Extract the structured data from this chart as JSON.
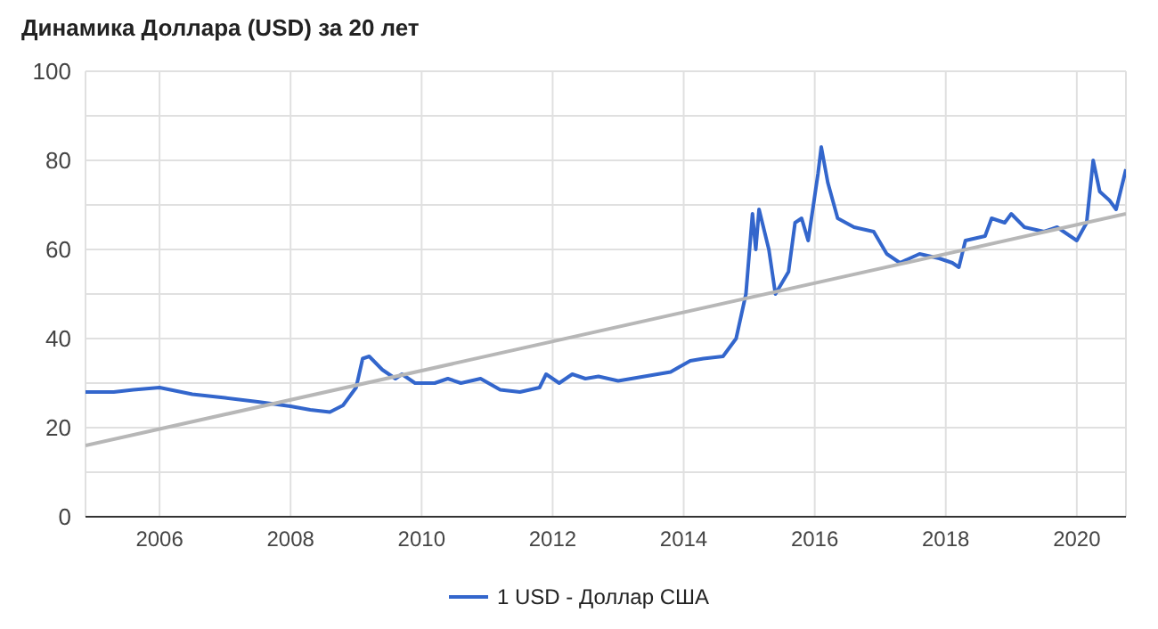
{
  "chart_data": {
    "type": "line",
    "title": "Динамика Доллара (USD) за 20 лет",
    "xlim": [
      2004.87,
      2020.75
    ],
    "xticks": [
      2006,
      2008,
      2010,
      2012,
      2014,
      2016,
      2018,
      2020
    ],
    "ylim": [
      0,
      100
    ],
    "yticks": [
      0,
      {
        "value": 10,
        "label": null
      },
      20,
      {
        "value": 30,
        "label": null
      },
      40,
      {
        "value": 50,
        "label": null
      },
      60,
      {
        "value": 70,
        "label": null
      },
      80,
      {
        "value": 90,
        "label": null
      },
      100
    ],
    "grid": true,
    "legend": "bottom",
    "marker": "none",
    "line_style": "solid",
    "series": [
      {
        "name": "1 USD - Доллар США",
        "color": "#3366cc",
        "x": [
          2004.87,
          2005.3,
          2005.6,
          2006.0,
          2006.5,
          2007.0,
          2007.5,
          2008.0,
          2008.3,
          2008.6,
          2008.8,
          2009.0,
          2009.1,
          2009.2,
          2009.4,
          2009.6,
          2009.7,
          2009.9,
          2010.2,
          2010.4,
          2010.6,
          2010.9,
          2011.2,
          2011.5,
          2011.8,
          2011.9,
          2012.1,
          2012.3,
          2012.5,
          2012.7,
          2013.0,
          2013.4,
          2013.8,
          2014.1,
          2014.3,
          2014.6,
          2014.8,
          2014.95,
          2015.05,
          2015.1,
          2015.15,
          2015.3,
          2015.4,
          2015.6,
          2015.7,
          2015.8,
          2015.9,
          2016.05,
          2016.1,
          2016.2,
          2016.35,
          2016.6,
          2016.9,
          2017.1,
          2017.3,
          2017.6,
          2017.9,
          2018.1,
          2018.2,
          2018.3,
          2018.6,
          2018.7,
          2018.9,
          2019.0,
          2019.2,
          2019.5,
          2019.7,
          2019.9,
          2020.0,
          2020.15,
          2020.25,
          2020.35,
          2020.5,
          2020.6,
          2020.75
        ],
        "values": [
          28,
          28,
          28.5,
          29,
          27.5,
          26.7,
          25.8,
          24.8,
          24,
          23.5,
          25,
          29,
          35.5,
          36,
          33,
          31,
          32,
          30,
          30,
          31,
          30,
          31,
          28.5,
          28,
          29,
          32,
          30,
          32,
          31,
          31.5,
          30.5,
          31.5,
          32.5,
          35,
          35.5,
          36,
          40,
          50,
          68,
          60,
          69,
          60,
          50,
          55,
          66,
          67,
          62,
          77,
          83,
          75,
          67,
          65,
          64,
          59,
          57,
          59,
          58,
          57,
          56,
          62,
          63,
          67,
          66,
          68,
          65,
          64,
          65,
          63,
          62,
          66,
          80,
          73,
          71,
          69,
          78
        ]
      },
      {
        "type": "line",
        "color": "#b7b7b7",
        "x": [
          2004.87,
          2020.75
        ],
        "values": [
          16,
          68
        ]
      }
    ]
  }
}
